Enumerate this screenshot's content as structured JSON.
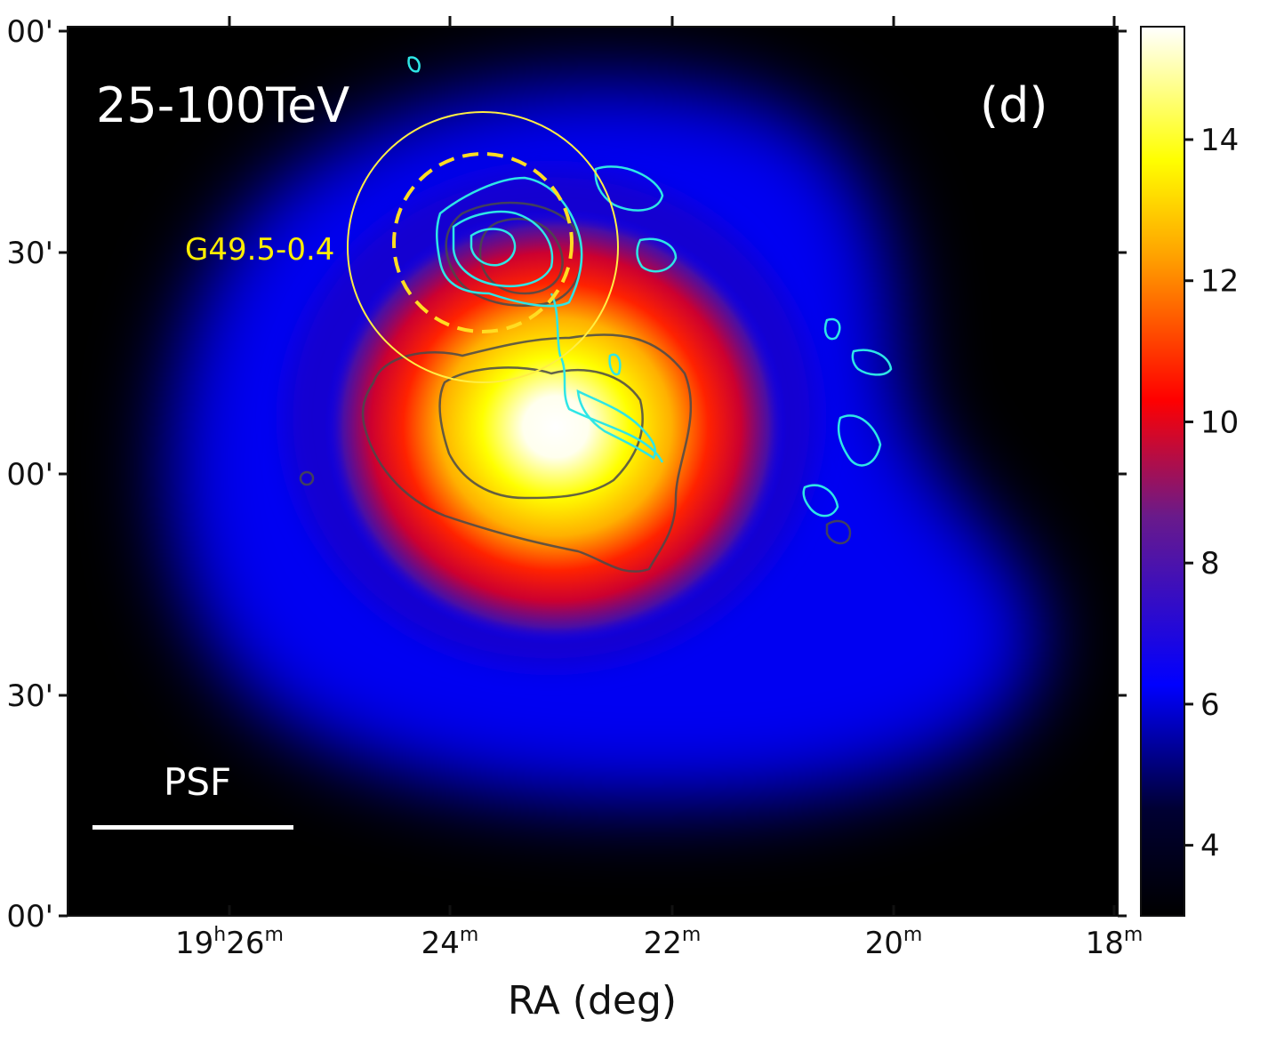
{
  "chart_data": {
    "type": "heatmap",
    "title": "",
    "xlabel": "RA (deg)",
    "ylabel": "",
    "energy_band": "25-100TeV",
    "panel_label": "(d)",
    "source_label": "G49.5-0.4",
    "psf_label": "PSF",
    "x_ticks": [
      {
        "main": "19",
        "sup1": "h",
        "mid": "26",
        "sup2": "m"
      },
      {
        "main": "",
        "sup1": "",
        "mid": "24",
        "sup2": "m"
      },
      {
        "main": "",
        "sup1": "",
        "mid": "22",
        "sup2": "m"
      },
      {
        "main": "",
        "sup1": "",
        "mid": "20",
        "sup2": "m"
      },
      {
        "main": "",
        "sup1": "",
        "mid": "18",
        "sup2": "m"
      }
    ],
    "y_ticks": [
      "00'",
      "30'",
      "00'",
      "30'",
      "00'"
    ],
    "colorbar": {
      "ticks": [
        4,
        6,
        8,
        10,
        12,
        14
      ],
      "range": [
        3.0,
        15.6
      ],
      "colormap": [
        "#000000",
        "#0000ff",
        "#ff0000",
        "#ffff00",
        "#ffffff"
      ]
    },
    "colors": {
      "source_circle": "#ffee44",
      "contour_radio": "#2ee6e6",
      "contour_dark": "#444444",
      "annotation_text": "#ffffff",
      "source_text": "#ffee00"
    }
  }
}
